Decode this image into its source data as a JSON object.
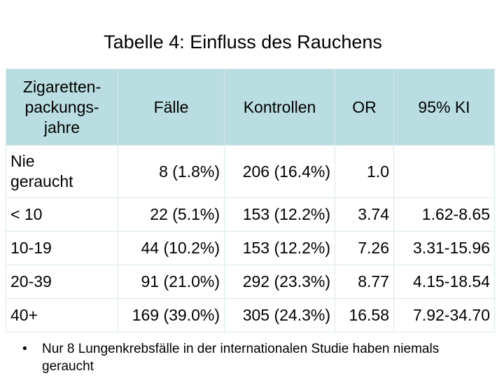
{
  "title": "Tabelle 4: Einfluss des Rauchens",
  "table": {
    "headers": [
      "Zigaretten-\npackungs-\njahre",
      "Fälle",
      "Kontrollen",
      "OR",
      "95% KI"
    ],
    "rows": [
      [
        "Nie\ngeraucht",
        "8 (1.8%)",
        "206 (16.4%)",
        "1.0",
        ""
      ],
      [
        "< 10",
        "22 (5.1%)",
        "153 (12.2%)",
        "3.74",
        "1.62-8.65"
      ],
      [
        "10-19",
        "44 (10.2%)",
        "153 (12.2%)",
        "7.26",
        "3.31-15.96"
      ],
      [
        "20-39",
        "91 (21.0%)",
        "292 (23.3%)",
        "8.77",
        "4.15-18.54"
      ],
      [
        "40+",
        "169 (39.0%)",
        "305 (24.3%)",
        "16.58",
        "7.92-34.70"
      ]
    ]
  },
  "note": {
    "bullet": "•",
    "text": "Nur 8 Lungenkrebsfälle in der internationalen Studie haben niemals geraucht"
  },
  "colors": {
    "header_bg": "#b9dde0",
    "grid": "#d9e8ea"
  }
}
